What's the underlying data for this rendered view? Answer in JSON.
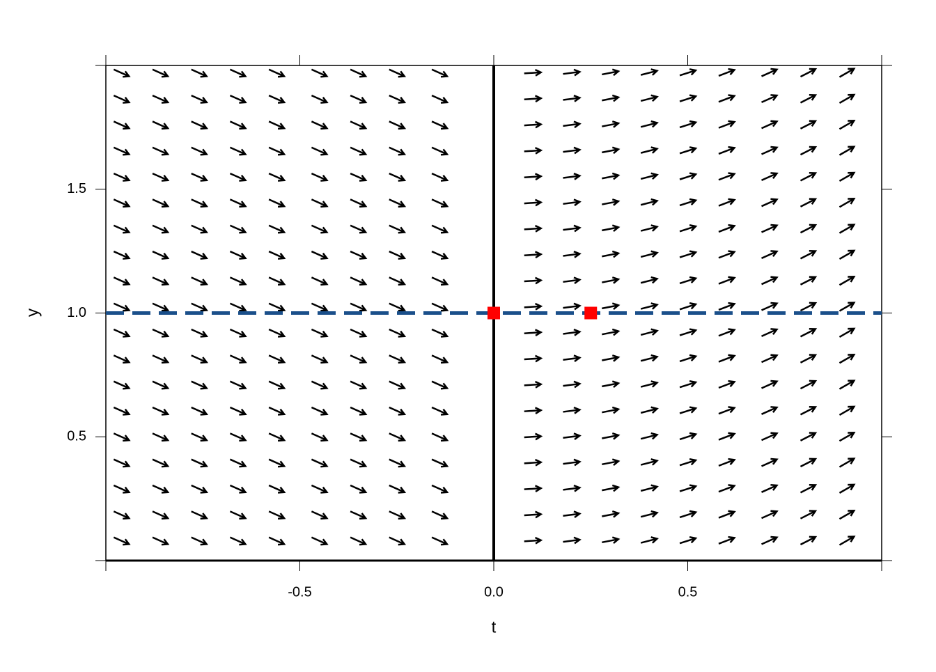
{
  "chart_data": {
    "type": "slope_field",
    "xlabel": "t",
    "ylabel": "y",
    "xlim": [
      -1,
      1
    ],
    "ylim": [
      0,
      2
    ],
    "xticks": [
      {
        "value": -0.5,
        "label": "-0.5"
      },
      {
        "value": 0,
        "label": "0.0"
      },
      {
        "value": 0.5,
        "label": "0.5"
      }
    ],
    "yticks": [
      {
        "value": 0.5,
        "label": "0.5"
      },
      {
        "value": 1,
        "label": "1.0"
      },
      {
        "value": 1.5,
        "label": "1.5"
      }
    ],
    "columns_t": [
      -0.96,
      -0.86,
      -0.76,
      -0.66,
      -0.56,
      -0.45,
      -0.35,
      -0.25,
      -0.14,
      0.1,
      0.2,
      0.3,
      0.4,
      0.5,
      0.6,
      0.71,
      0.81,
      0.91
    ],
    "slopes": [
      -0.7,
      -0.7,
      -0.7,
      -0.7,
      -0.7,
      -0.7,
      -0.7,
      -0.7,
      -0.7,
      0.1,
      0.2,
      0.3,
      0.4,
      0.5,
      0.6,
      0.7,
      0.8,
      0.9
    ],
    "rows_y": [
      0.08,
      0.185,
      0.29,
      0.395,
      0.5,
      0.605,
      0.71,
      0.815,
      0.92,
      1.025,
      1.13,
      1.235,
      1.34,
      1.445,
      1.55,
      1.655,
      1.76,
      1.865,
      1.97
    ],
    "arrow_color": "#000000",
    "vline": 0,
    "hline": 1,
    "hline_color": "#1a4f8a",
    "points": {
      "t": [
        0,
        0.25
      ],
      "y": [
        1,
        1
      ],
      "color": "#ff0000"
    }
  }
}
